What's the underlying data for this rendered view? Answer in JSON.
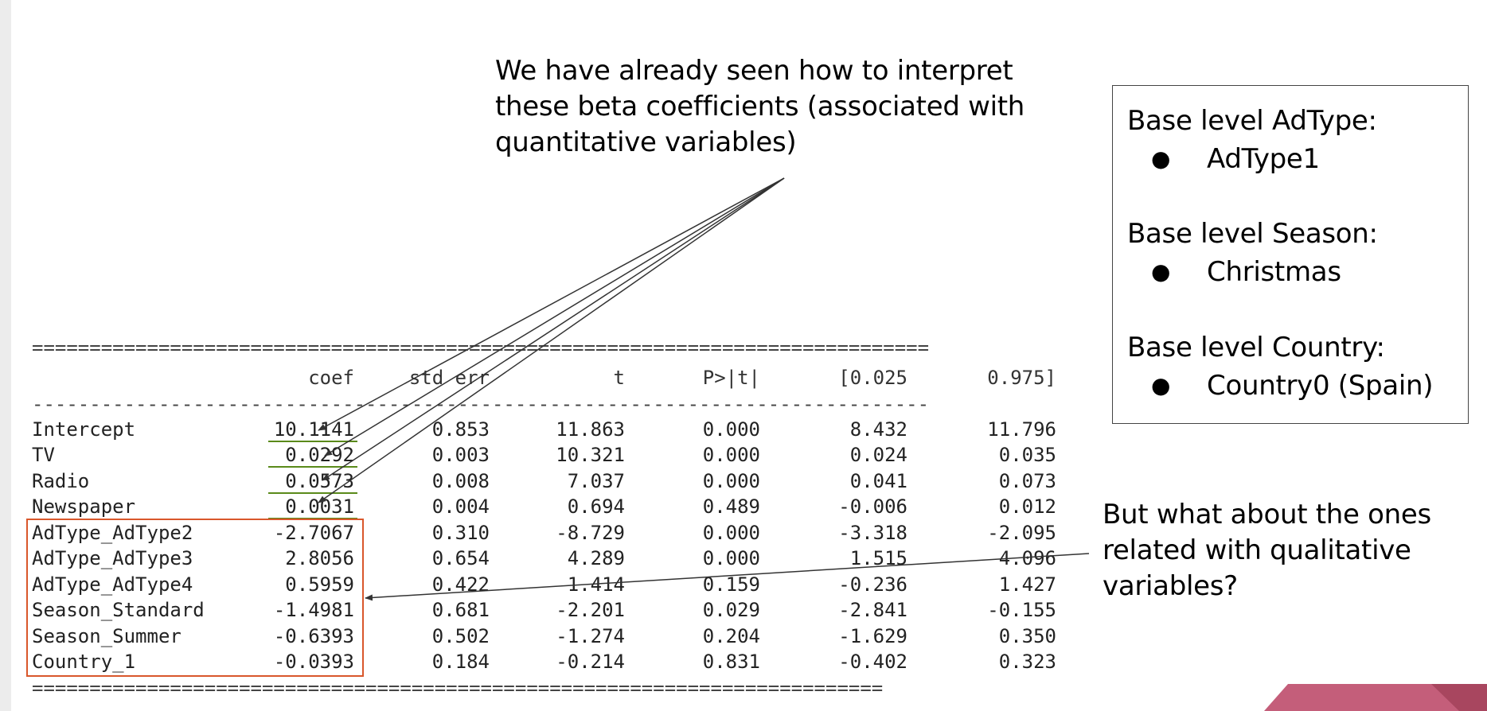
{
  "annotations": {
    "top_note": "We have already seen how to interpret these beta coefficients (associated with quantitative variables)",
    "bottom_note": "But what about the ones related with qualitative variables?"
  },
  "base_levels": [
    {
      "heading": "Base level AdType:",
      "item": "AdType1"
    },
    {
      "heading": "Base level Season:",
      "item": "Christmas"
    },
    {
      "heading": "Base level Country:",
      "item": "Country0 (Spain)"
    }
  ],
  "table": {
    "rule_top": "==============================================================================",
    "rule_mid": "------------------------------------------------------------------------------",
    "rule_bottom": "==========================================================================",
    "columns": [
      "",
      "coef",
      "std err",
      "t",
      "P>|t|",
      "[0.025",
      "0.975]"
    ],
    "rows": [
      [
        "Intercept",
        "10.1141",
        "0.853",
        "11.863",
        "0.000",
        "8.432",
        "11.796"
      ],
      [
        "TV",
        "0.0292",
        "0.003",
        "10.321",
        "0.000",
        "0.024",
        "0.035"
      ],
      [
        "Radio",
        "0.0573",
        "0.008",
        "7.037",
        "0.000",
        "0.041",
        "0.073"
      ],
      [
        "Newspaper",
        "0.0031",
        "0.004",
        "0.694",
        "0.489",
        "-0.006",
        "0.012"
      ],
      [
        "AdType_AdType2",
        "-2.7067",
        "0.310",
        "-8.729",
        "0.000",
        "-3.318",
        "-2.095"
      ],
      [
        "AdType_AdType3",
        "2.8056",
        "0.654",
        "4.289",
        "0.000",
        "1.515",
        "4.096"
      ],
      [
        "AdType_AdType4",
        "0.5959",
        "0.422",
        "1.414",
        "0.159",
        "-0.236",
        "1.427"
      ],
      [
        "Season_Standard",
        "-1.4981",
        "0.681",
        "-2.201",
        "0.029",
        "-2.841",
        "-0.155"
      ],
      [
        "Season_Summer",
        "-0.6393",
        "0.502",
        "-1.274",
        "0.204",
        "-1.629",
        "0.350"
      ],
      [
        "Country_1",
        "-0.0393",
        "0.184",
        "-0.214",
        "0.831",
        "-0.402",
        "0.323"
      ]
    ]
  },
  "colors": {
    "highlight_box": "#d9572b",
    "underline": "#5a8a1a",
    "corner_dark": "#a8465f",
    "corner_light": "#c45e7a"
  }
}
